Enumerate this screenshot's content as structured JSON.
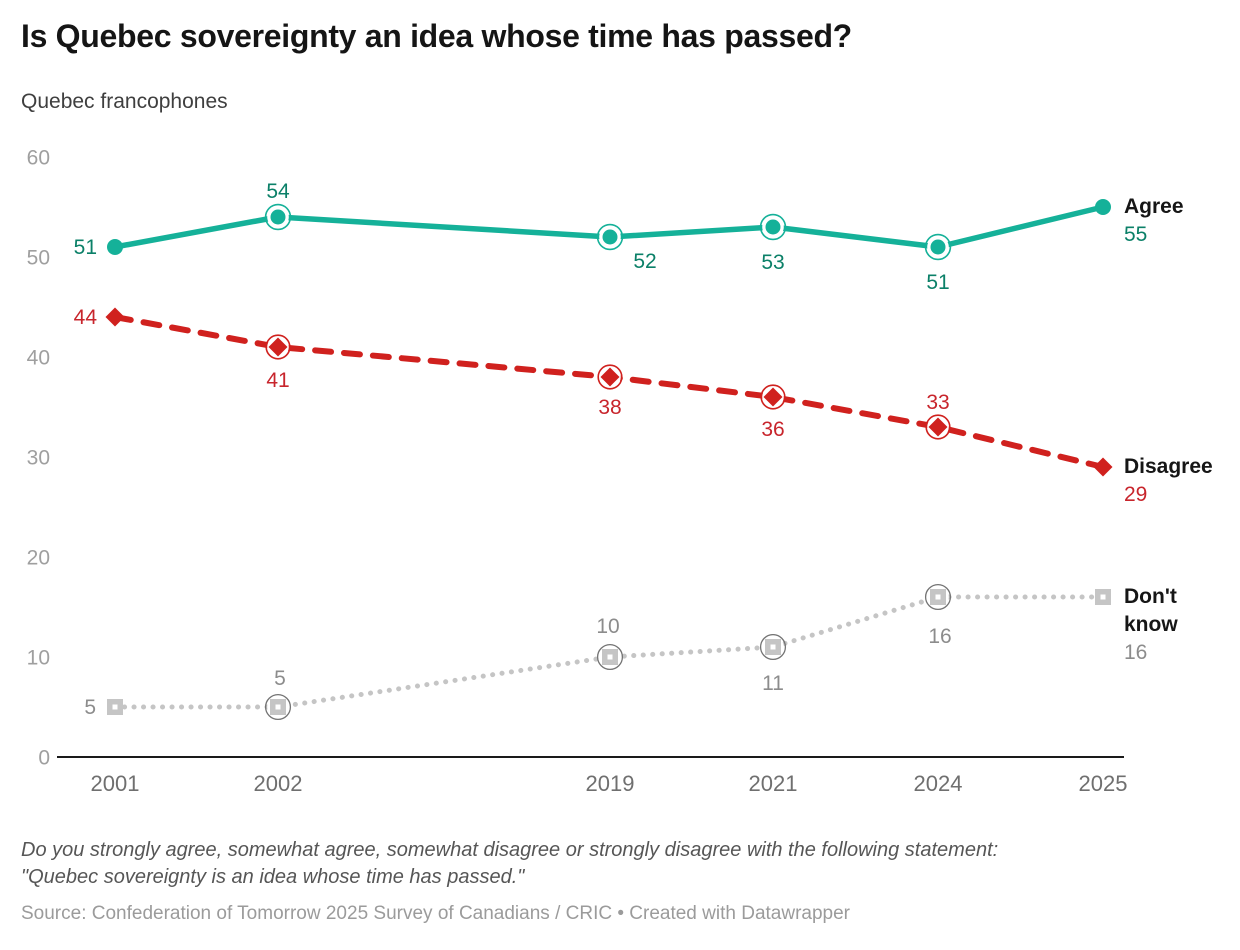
{
  "chart_data": {
    "type": "line",
    "title": "Is Quebec sovereignty an idea whose time has passed?",
    "subtitle": "Quebec francophones",
    "x_labels": [
      "2001",
      "2002",
      "2019",
      "2021",
      "2024",
      "2025"
    ],
    "x_axis_break_between": [
      "2002",
      "2019"
    ],
    "ylim": [
      0,
      60
    ],
    "yticks": [
      0,
      10,
      20,
      30,
      40,
      50,
      60
    ],
    "grid": false,
    "legend_position": "end-of-line",
    "series": [
      {
        "name": "Agree",
        "values": [
          51,
          54,
          52,
          53,
          51,
          55
        ],
        "color": "#15b199",
        "label_color": "#0b8068",
        "line_style": "solid",
        "marker": "circle"
      },
      {
        "name": "Disagree",
        "values": [
          44,
          41,
          38,
          36,
          33,
          29
        ],
        "color": "#d0211e",
        "label_color": "#c8252c",
        "line_style": "dashed",
        "marker": "diamond"
      },
      {
        "name": "Don't know",
        "values": [
          5,
          5,
          10,
          11,
          16,
          16
        ],
        "color": "#c5c5c5",
        "label_color": "#8c8c8c",
        "ring_color": "#737373",
        "line_style": "dotted",
        "marker": "square-with-dot"
      }
    ],
    "ringed_x_indices": [
      1,
      2,
      3,
      4
    ],
    "axis_colors": {
      "axis_line": "#1a1a1a",
      "x_tick_label": "#6f6f6f",
      "y_tick_label": "#9f9f9f"
    }
  },
  "footer": {
    "note": "Do you strongly agree, somewhat agree, somewhat disagree or strongly disagree with the following statement:\n\"Quebec sovereignty is an idea whose time has passed.\"",
    "source": "Source: Confederation of Tomorrow 2025 Survey of Canadians / CRIC • Created with Datawrapper"
  }
}
